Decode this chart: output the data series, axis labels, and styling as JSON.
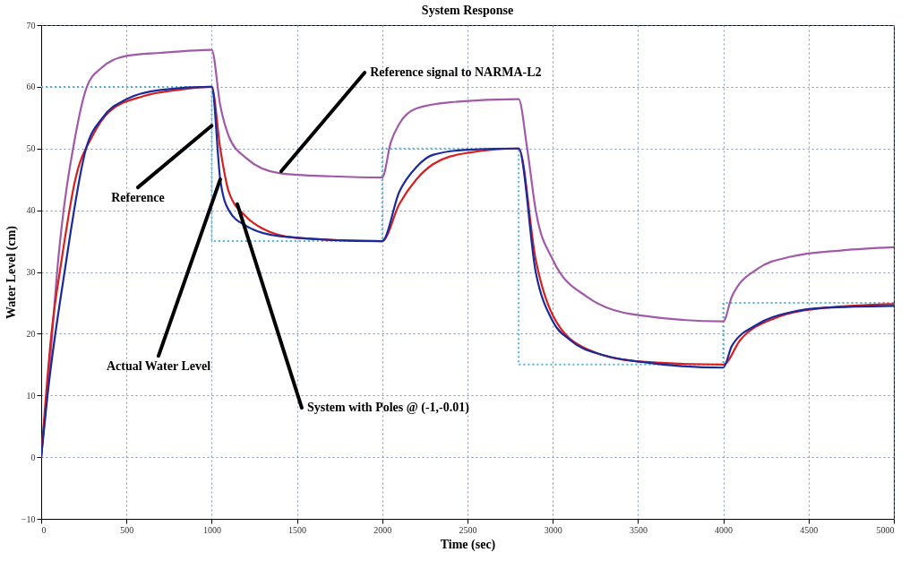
{
  "chart_data": {
    "type": "line",
    "title": "System Response",
    "xlabel": "Time (sec)",
    "ylabel": "Water Level (cm)",
    "xlim": [
      0,
      5000
    ],
    "xticks": [
      0,
      500,
      1000,
      1500,
      2000,
      2500,
      3000,
      3500,
      4000,
      4500,
      5000
    ],
    "ylim": [
      -10,
      70
    ],
    "yticks": [
      -10,
      0,
      10,
      20,
      30,
      40,
      50,
      60,
      70
    ],
    "grid": true,
    "line_style": "solid",
    "series": [
      {
        "color": "#4fb0d8",
        "line_style": "dotted",
        "x": [
          0,
          1000,
          1000,
          2000,
          2000,
          2800,
          2800,
          4000,
          4000,
          5000
        ],
        "values": [
          60,
          60,
          35,
          35,
          50,
          50,
          15,
          15,
          25,
          25
        ]
      },
      {
        "color": "#a05aa8",
        "x": [
          0,
          50,
          100,
          200,
          268,
          350,
          500,
          700,
          1000,
          1050,
          1100,
          1200,
          1400,
          1700,
          2000,
          2050,
          2100,
          2200,
          2400,
          2800,
          2850,
          2900,
          3000,
          3200,
          3500,
          4000,
          4050,
          4200,
          4400,
          4700,
          5000
        ],
        "values": [
          0,
          15,
          32,
          52,
          60,
          63,
          65,
          65.5,
          66,
          57,
          52,
          48.5,
          46,
          45.5,
          45.3,
          51,
          54,
          56.5,
          57.5,
          58,
          50,
          40,
          32,
          26,
          23,
          22,
          26,
          30.5,
          32.5,
          33.5,
          34
        ]
      },
      {
        "color": "#d62020",
        "x": [
          0,
          60,
          120,
          200,
          300,
          400,
          600,
          800,
          1000,
          1050,
          1100,
          1200,
          1300,
          1500,
          2000,
          2100,
          2200,
          2300,
          2500,
          2800,
          2900,
          3000,
          3200,
          3500,
          4000,
          4100,
          4300,
          4600,
          5000
        ],
        "values": [
          0,
          20,
          32,
          45,
          52,
          56,
          58.5,
          59.5,
          60,
          50,
          43,
          39,
          37,
          35.5,
          35,
          41,
          45,
          47.5,
          49.3,
          50,
          32,
          23,
          17.5,
          15.5,
          15,
          19,
          22.5,
          24.2,
          24.8
        ]
      },
      {
        "color": "#1a2a9a",
        "x": [
          0,
          37,
          137,
          263,
          360,
          500,
          700,
          1000,
          1050,
          1100,
          1200,
          1400,
          2000,
          2100,
          2200,
          2300,
          2500,
          2800,
          2900,
          3000,
          3100,
          3300,
          3500,
          4000,
          4050,
          4200,
          4400,
          4600,
          5000
        ],
        "values": [
          0,
          10,
          30,
          50,
          55,
          58,
          59.5,
          60,
          45,
          40,
          37.5,
          35.8,
          35,
          43,
          47,
          49,
          49.8,
          50,
          30,
          22,
          19,
          16.5,
          15.5,
          14.5,
          18,
          21.5,
          23.5,
          24.2,
          24.5
        ]
      }
    ],
    "annotations": [
      {
        "text": "Reference",
        "x": 1000,
        "y": 53.7
      },
      {
        "text": "Reference signal to NARMA-L2",
        "x": 1407,
        "y": 46.3
      },
      {
        "text": "Actual Water Level",
        "x": 1050,
        "y": 45
      },
      {
        "text": "System with Poles @ (-1,-0.01)",
        "x": 1150,
        "y": 41
      }
    ]
  }
}
